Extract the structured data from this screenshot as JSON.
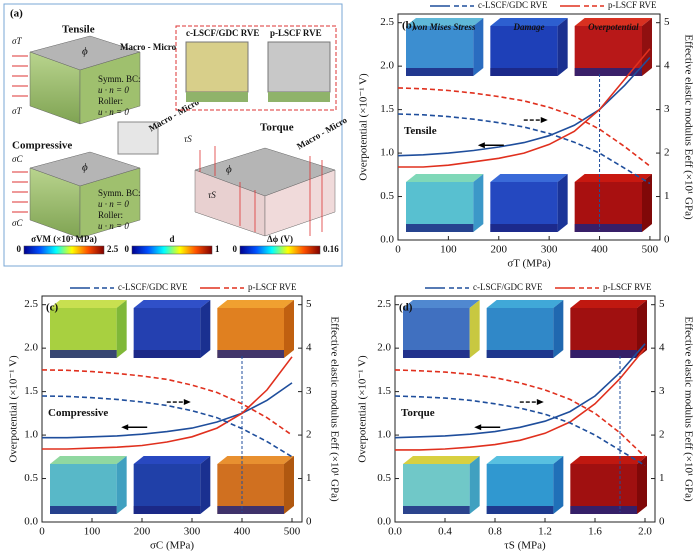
{
  "schematic": {
    "panel_label": "(a)",
    "tensile": "Tensile",
    "compressive": "Compressive",
    "torque": "Torque",
    "sigma_t": "σT",
    "sigma_c": "σC",
    "tau_s": "τS",
    "phi": "ϕ",
    "macro_micro": "Macro - Micro",
    "rve_c": "c-LSCF/GDC RVE",
    "rve_p": "p-LSCF RVE",
    "symm_bc": "Symm. BC:",
    "roller": "Roller:",
    "bc_eq": "u · n = 0",
    "colorbars": [
      {
        "title": "σVM (×10³ MPa)",
        "min": 0,
        "max": 2.5
      },
      {
        "title": "d",
        "min": 0,
        "max": 1
      },
      {
        "title": "Δϕ (V)",
        "min": 0,
        "max": 0.16
      }
    ]
  },
  "chart_data": [
    {
      "type": "line",
      "panel_label": "(b)",
      "annotation": "Tensile",
      "inset_labels": [
        "von Mises Stress",
        "Damage",
        "Overpotential"
      ],
      "xlabel": "σT (MPa)",
      "ylabel": "Overpotential (×10⁻¹ V)",
      "y2label": "Effective elastic modulus Eeff (×10¹ GPa)",
      "x": [
        0,
        50,
        100,
        150,
        200,
        250,
        300,
        350,
        400,
        450,
        500
      ],
      "xlim": [
        0,
        520
      ],
      "xticks": [
        0,
        100,
        200,
        300,
        400,
        500
      ],
      "ylim": [
        0,
        2.6
      ],
      "yticks": [
        {
          "value": 0,
          "label": "0.0"
        },
        0.5,
        {
          "value": 1,
          "label": "1.0"
        },
        1.5,
        {
          "value": 2,
          "label": "2.0"
        },
        2.5
      ],
      "y2lim": [
        0,
        5.2
      ],
      "y2ticks": [
        0,
        1,
        2,
        3,
        4,
        5
      ],
      "marker_x": 400,
      "series": [
        {
          "name": "c-LSCF/GDC RVE",
          "color": "#1f4e9c",
          "values": [
            0.97,
            0.98,
            1.0,
            1.03,
            1.07,
            1.12,
            1.2,
            1.32,
            1.5,
            1.78,
            2.1
          ]
        },
        {
          "name": "p-LSCF RVE",
          "color": "#e0301e",
          "values": [
            0.84,
            0.84,
            0.86,
            0.9,
            0.94,
            1.0,
            1.1,
            1.25,
            1.5,
            1.85,
            2.2
          ]
        },
        {
          "color": "#1f4e9c",
          "dash": true,
          "axis": "y2",
          "values": [
            2.9,
            2.88,
            2.84,
            2.78,
            2.7,
            2.6,
            2.45,
            2.25,
            2.0,
            1.65,
            1.3
          ]
        },
        {
          "color": "#e0301e",
          "dash": true,
          "axis": "y2",
          "values": [
            3.5,
            3.48,
            3.44,
            3.38,
            3.3,
            3.2,
            3.05,
            2.85,
            2.55,
            2.15,
            1.7
          ]
        }
      ]
    },
    {
      "type": "line",
      "panel_label": "(c)",
      "annotation": "Compressive",
      "xlabel": "σC (MPa)",
      "ylabel": "Overpotential (×10⁻¹ V)",
      "y2label": "Effective elastic modulus Eeff (×10¹ GPa)",
      "x": [
        0,
        50,
        100,
        150,
        200,
        250,
        300,
        350,
        400,
        450,
        500
      ],
      "xlim": [
        0,
        520
      ],
      "xticks": [
        0,
        100,
        200,
        300,
        400,
        500
      ],
      "ylim": [
        0,
        2.6
      ],
      "yticks": [
        {
          "value": 0,
          "label": "0.0"
        },
        0.5,
        {
          "value": 1,
          "label": "1.0"
        },
        1.5,
        {
          "value": 2,
          "label": "2.0"
        },
        2.5
      ],
      "y2lim": [
        0,
        5.2
      ],
      "y2ticks": [
        0,
        1,
        2,
        3,
        4,
        5
      ],
      "marker_x": 400,
      "series": [
        {
          "name": "c-LSCF/GDC RVE",
          "color": "#1f4e9c",
          "values": [
            0.97,
            0.97,
            0.98,
            0.99,
            1.01,
            1.04,
            1.08,
            1.15,
            1.25,
            1.4,
            1.6
          ]
        },
        {
          "name": "p-LSCF RVE",
          "color": "#e0301e",
          "values": [
            0.84,
            0.84,
            0.85,
            0.86,
            0.88,
            0.92,
            0.98,
            1.08,
            1.25,
            1.52,
            1.9
          ]
        },
        {
          "color": "#1f4e9c",
          "dash": true,
          "axis": "y2",
          "values": [
            2.9,
            2.89,
            2.86,
            2.82,
            2.76,
            2.68,
            2.56,
            2.4,
            2.15,
            1.85,
            1.5
          ]
        },
        {
          "color": "#e0301e",
          "dash": true,
          "axis": "y2",
          "values": [
            3.5,
            3.49,
            3.46,
            3.42,
            3.36,
            3.28,
            3.15,
            2.98,
            2.72,
            2.4,
            2.0
          ]
        }
      ]
    },
    {
      "type": "line",
      "panel_label": "(d)",
      "annotation": "Torque",
      "xlabel": "τS (MPa)",
      "ylabel": "Overpotential (×10⁻¹ V)",
      "y2label": "Effective elastic modulus Eeff (×10¹ GPa)",
      "x": [
        0,
        0.2,
        0.4,
        0.6,
        0.8,
        1.0,
        1.2,
        1.4,
        1.6,
        1.8,
        2.0
      ],
      "xlim": [
        0,
        2.08
      ],
      "xticks": [
        {
          "value": 0,
          "label": "0.0"
        },
        0.4,
        0.8,
        1.2,
        1.6,
        {
          "value": 2,
          "label": "2.0"
        }
      ],
      "ylim": [
        0,
        2.6
      ],
      "yticks": [
        {
          "value": 0,
          "label": "0.0"
        },
        0.5,
        {
          "value": 1,
          "label": "1.0"
        },
        1.5,
        {
          "value": 2,
          "label": "2.0"
        },
        2.5
      ],
      "y2lim": [
        0,
        5.2
      ],
      "y2ticks": [
        0,
        1,
        2,
        3,
        4,
        5
      ],
      "marker_x": 1.8,
      "series": [
        {
          "name": "c-LSCF/GDC RVE",
          "color": "#1f4e9c",
          "values": [
            0.97,
            0.98,
            0.99,
            1.01,
            1.04,
            1.09,
            1.16,
            1.27,
            1.45,
            1.72,
            2.05
          ]
        },
        {
          "name": "p-LSCF RVE",
          "color": "#e0301e",
          "values": [
            0.83,
            0.83,
            0.84,
            0.86,
            0.89,
            0.94,
            1.02,
            1.15,
            1.36,
            1.65,
            2.0
          ]
        },
        {
          "color": "#1f4e9c",
          "dash": true,
          "axis": "y2",
          "values": [
            2.9,
            2.88,
            2.85,
            2.8,
            2.72,
            2.62,
            2.48,
            2.28,
            2.0,
            1.65,
            1.3
          ]
        },
        {
          "color": "#e0301e",
          "dash": true,
          "axis": "y2",
          "values": [
            3.5,
            3.48,
            3.45,
            3.4,
            3.32,
            3.2,
            3.04,
            2.82,
            2.5,
            2.05,
            1.5
          ]
        }
      ]
    }
  ]
}
